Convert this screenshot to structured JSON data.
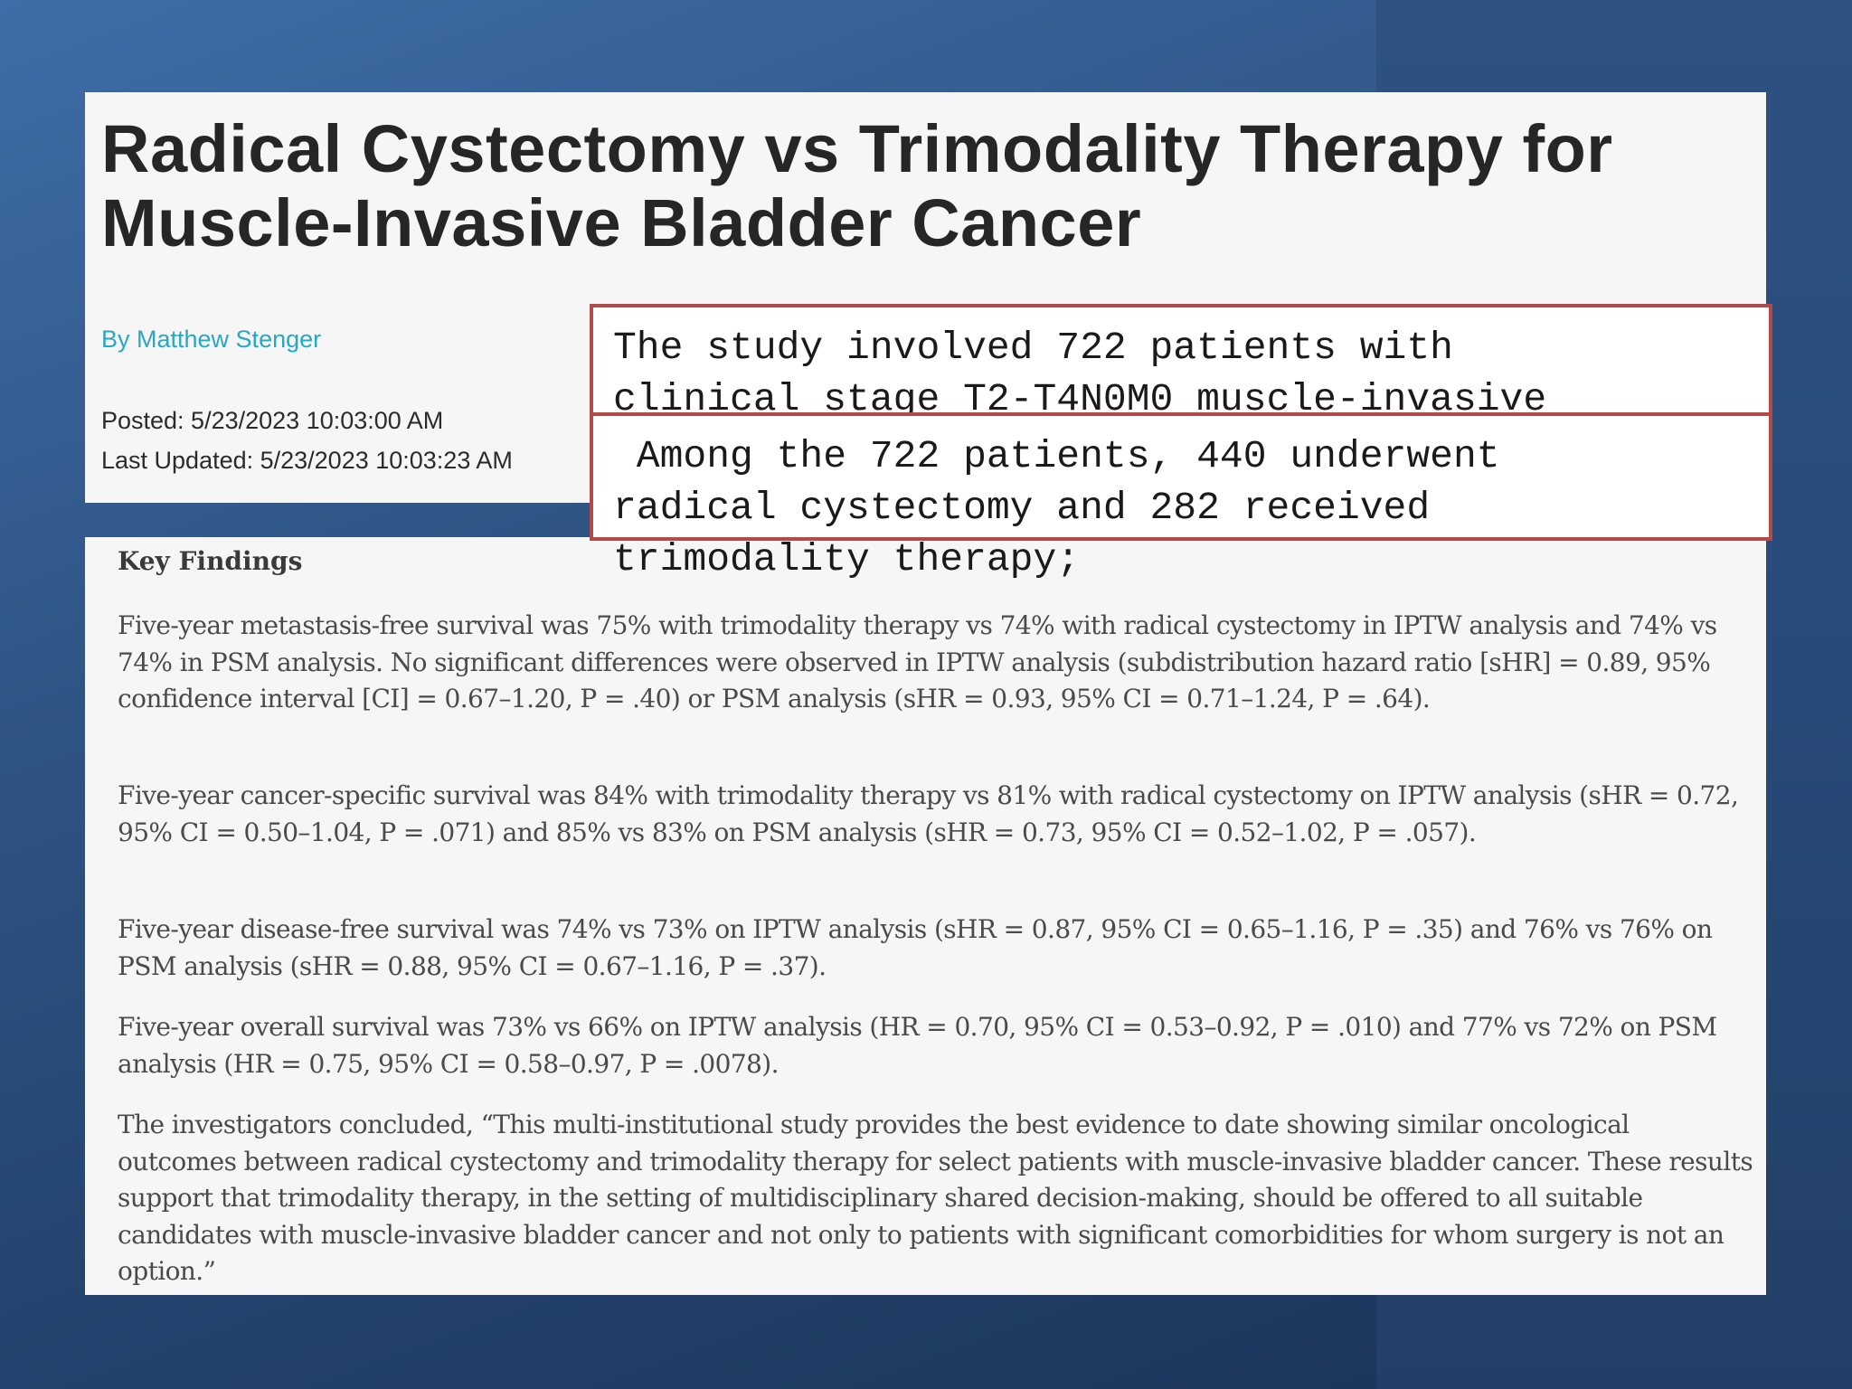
{
  "article": {
    "title": "Radical Cystectomy vs Trimodality Therapy for Muscle-Invasive Bladder Cancer",
    "byline": "By Matthew Stenger",
    "posted": "Posted: 5/23/2023 10:03:00 AM",
    "last_updated": "Last Updated: 5/23/2023 10:03:23 AM"
  },
  "key_findings": {
    "heading": "Key Findings",
    "paragraphs": [
      "Five-year metastasis-free survival was 75% with trimodality therapy vs 74% with radical cystectomy in IPTW analysis and 74% vs 74% in PSM analysis. No significant differences were observed in IPTW analysis (subdistribution hazard ratio [sHR] = 0.89, 95% confidence interval [CI] = 0.67–1.20, P = .40) or PSM analysis (sHR = 0.93, 95% CI = 0.71–1.24, P = .64).",
      "Five-year cancer-specific survival was 84% with trimodality therapy vs 81% with radical cystectomy on IPTW analysis (sHR = 0.72, 95% CI = 0.50–1.04, P = .071) and 85% vs 83% on PSM analysis (sHR = 0.73, 95% CI = 0.52–1.02, P = .057).",
      "Five-year disease-free survival was 74% vs 73% on IPTW analysis (sHR = 0.87, 95% CI = 0.65–1.16, P = .35) and 76% vs 76% on PSM analysis (sHR = 0.88, 95% CI = 0.67–1.16, P = .37).",
      "Five-year overall survival was 73% vs 66% on IPTW analysis (HR = 0.70, 95% CI = 0.53–0.92, P = .010) and 77% vs 72% on PSM analysis (HR = 0.75, 95% CI = 0.58–0.97, P = .0078).",
      "The investigators concluded, “This multi-institutional study provides the best evidence to date showing similar oncological outcomes between radical cystectomy and trimodality therapy for select patients with muscle-invasive bladder cancer. These results support that trimodality therapy, in the setting of multidisciplinary shared decision-making, should be offered to all suitable candidates with muscle-invasive bladder cancer and not only to patients with significant comorbidities for whom surgery is not an option.”"
    ]
  },
  "callouts": {
    "first": "The study involved 722 patients with\nclinical stage T2-T4N0M0 muscle-invasive",
    "second": " Among the 722 patients, 440 underwent\nradical cystectomy and 282 received\ntrimodality therapy;"
  },
  "colors": {
    "byline": "#2aa7c3",
    "callout_border": "#b24a4a",
    "background": "#2f5585"
  }
}
